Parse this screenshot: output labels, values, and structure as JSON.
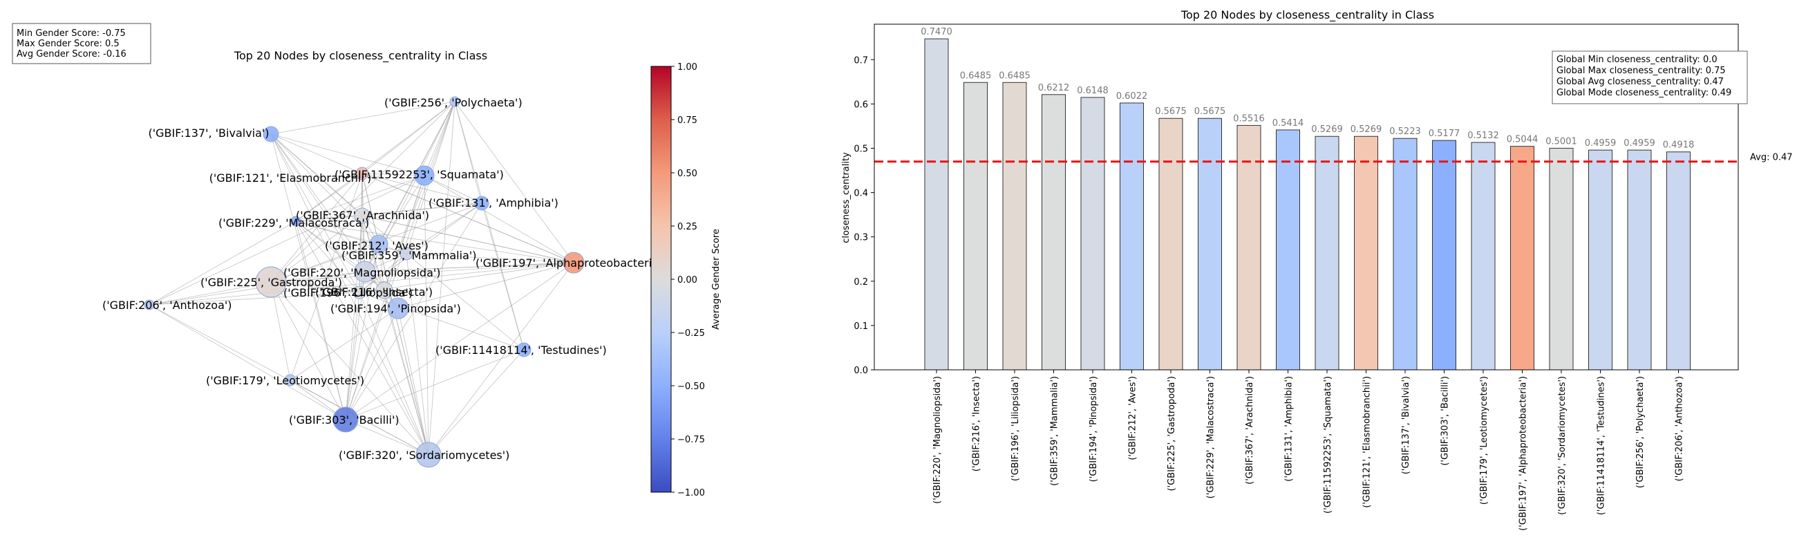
{
  "stats_box": {
    "min_line": "Min Gender Score: -0.75",
    "max_line": "Max Gender Score: 0.5",
    "avg_line": "Avg Gender Score: -0.16"
  },
  "network": {
    "title": "Top 20 Nodes by closeness_centrality in Class",
    "colorbar_label": "Average Gender Score",
    "colorbar_ticks": [
      "1.00",
      "0.75",
      "0.50",
      "0.25",
      "0.00",
      "−0.25",
      "−0.50",
      "−0.75",
      "−1.00"
    ],
    "nodes": [
      {
        "label": "('GBIF:256', 'Polychaeta')",
        "score": -0.25
      },
      {
        "label": "('GBIF:137', 'Bivalvia')",
        "score": -0.5
      },
      {
        "label": "('GBIF:11592253', 'Squamata')",
        "score": -0.5
      },
      {
        "label": "('GBIF:121', 'Elasmobranchii')",
        "score": 0.25
      },
      {
        "label": "('GBIF:131', 'Amphibia')",
        "score": -0.5
      },
      {
        "label": "('GBIF:367', 'Arachnida')",
        "score": 0.0
      },
      {
        "label": "('GBIF:229', 'Malacostraca')",
        "score": -0.5
      },
      {
        "label": "('GBIF:212', 'Aves')",
        "score": -0.33
      },
      {
        "label": "('GBIF:359', 'Mammalia')",
        "score": -0.1
      },
      {
        "label": "('GBIF:220', 'Magnoliopsida')",
        "score": -0.1
      },
      {
        "label": "('GBIF:197', 'Alphaproteobacteria')",
        "score": 0.5
      },
      {
        "label": "('GBIF:225', 'Gastropoda')",
        "score": 0.05
      },
      {
        "label": "('GBIF:196', 'Liliopsida')",
        "score": 0.0
      },
      {
        "label": "('GBIF:216', 'Insecta')",
        "score": 0.0
      },
      {
        "label": "('GBIF:206', 'Anthozoa')",
        "score": -0.25
      },
      {
        "label": "('GBIF:194', 'Pinopsida')",
        "score": -0.33
      },
      {
        "label": "('GBIF:11418114', 'Testudines')",
        "score": -0.5
      },
      {
        "label": "('GBIF:179', 'Leotiomycetes')",
        "score": -0.25
      },
      {
        "label": "('GBIF:303', 'Bacilli')",
        "score": -0.75
      },
      {
        "label": "('GBIF:320', 'Sordariomycetes')",
        "score": -0.25
      }
    ]
  },
  "legend_box": {
    "min_line": "Global Min closeness_centrality: 0.0",
    "max_line": "Global Max closeness_centrality: 0.75",
    "avg_line": "Global Avg closeness_centrality: 0.47",
    "mode_line": "Global Mode closeness_centrality: 0.49"
  },
  "avg_line_label": "Avg: 0.47",
  "chart_data": {
    "type": "bar",
    "title": "Top 20 Nodes by closeness_centrality in Class",
    "xlabel": "",
    "ylabel": "closeness_centrality",
    "ylim": [
      0,
      0.78
    ],
    "yticks": [
      "0.0",
      "0.1",
      "0.2",
      "0.3",
      "0.4",
      "0.5",
      "0.6",
      "0.7"
    ],
    "categories": [
      "('GBIF:220', 'Magnoliopsida')",
      "('GBIF:216', 'Insecta')",
      "('GBIF:196', 'Liliopsida')",
      "('GBIF:359', 'Mammalia')",
      "('GBIF:194', 'Pinopsida')",
      "('GBIF:212', 'Aves')",
      "('GBIF:225', 'Gastropoda')",
      "('GBIF:229', 'Malacostraca')",
      "('GBIF:367', 'Arachnida')",
      "('GBIF:131', 'Amphibia')",
      "('GBIF:11592253', 'Squamata')",
      "('GBIF:121', 'Elasmobranchii')",
      "('GBIF:137', 'Bivalvia')",
      "('GBIF:303', 'Bacilli')",
      "('GBIF:179', 'Leotiomycetes')",
      "('GBIF:197', 'Alphaproteobacteria')",
      "('GBIF:320', 'Sordariomycetes')",
      "('GBIF:11418114', 'Testudines')",
      "('GBIF:256', 'Polychaeta')",
      "('GBIF:206', 'Anthozoa')"
    ],
    "values": [
      0.747,
      0.6485,
      0.6485,
      0.6212,
      0.6148,
      0.6022,
      0.5675,
      0.5675,
      0.5516,
      0.5414,
      0.5269,
      0.5269,
      0.5223,
      0.5177,
      0.5132,
      0.5044,
      0.5001,
      0.4959,
      0.4959,
      0.4918
    ],
    "value_labels": [
      "0.7470",
      "0.6485",
      "0.6485",
      "0.6212",
      "0.6148",
      "0.6022",
      "0.5675",
      "0.5675",
      "0.5516",
      "0.5414",
      "0.5269",
      "0.5269",
      "0.5223",
      "0.5177",
      "0.5132",
      "0.5044",
      "0.5001",
      "0.4959",
      "0.4959",
      "0.4918"
    ],
    "bar_colors": [
      "#d5dbe5",
      "#dcdddd",
      "#e3d9d3",
      "#dcdddd",
      "#d5dbe5",
      "#b9d0f9",
      "#ead4c8",
      "#b9d0f9",
      "#ead4c8",
      "#aac7fd",
      "#c9d7f0",
      "#f3c7b1",
      "#aac7fd",
      "#8caffe",
      "#c9d7f0",
      "#f7a889",
      "#dcdddd",
      "#c9d7f0",
      "#c9d7f0",
      "#c9d7f0"
    ],
    "average": 0.47,
    "average_color": "#ee1111",
    "grid": false
  }
}
